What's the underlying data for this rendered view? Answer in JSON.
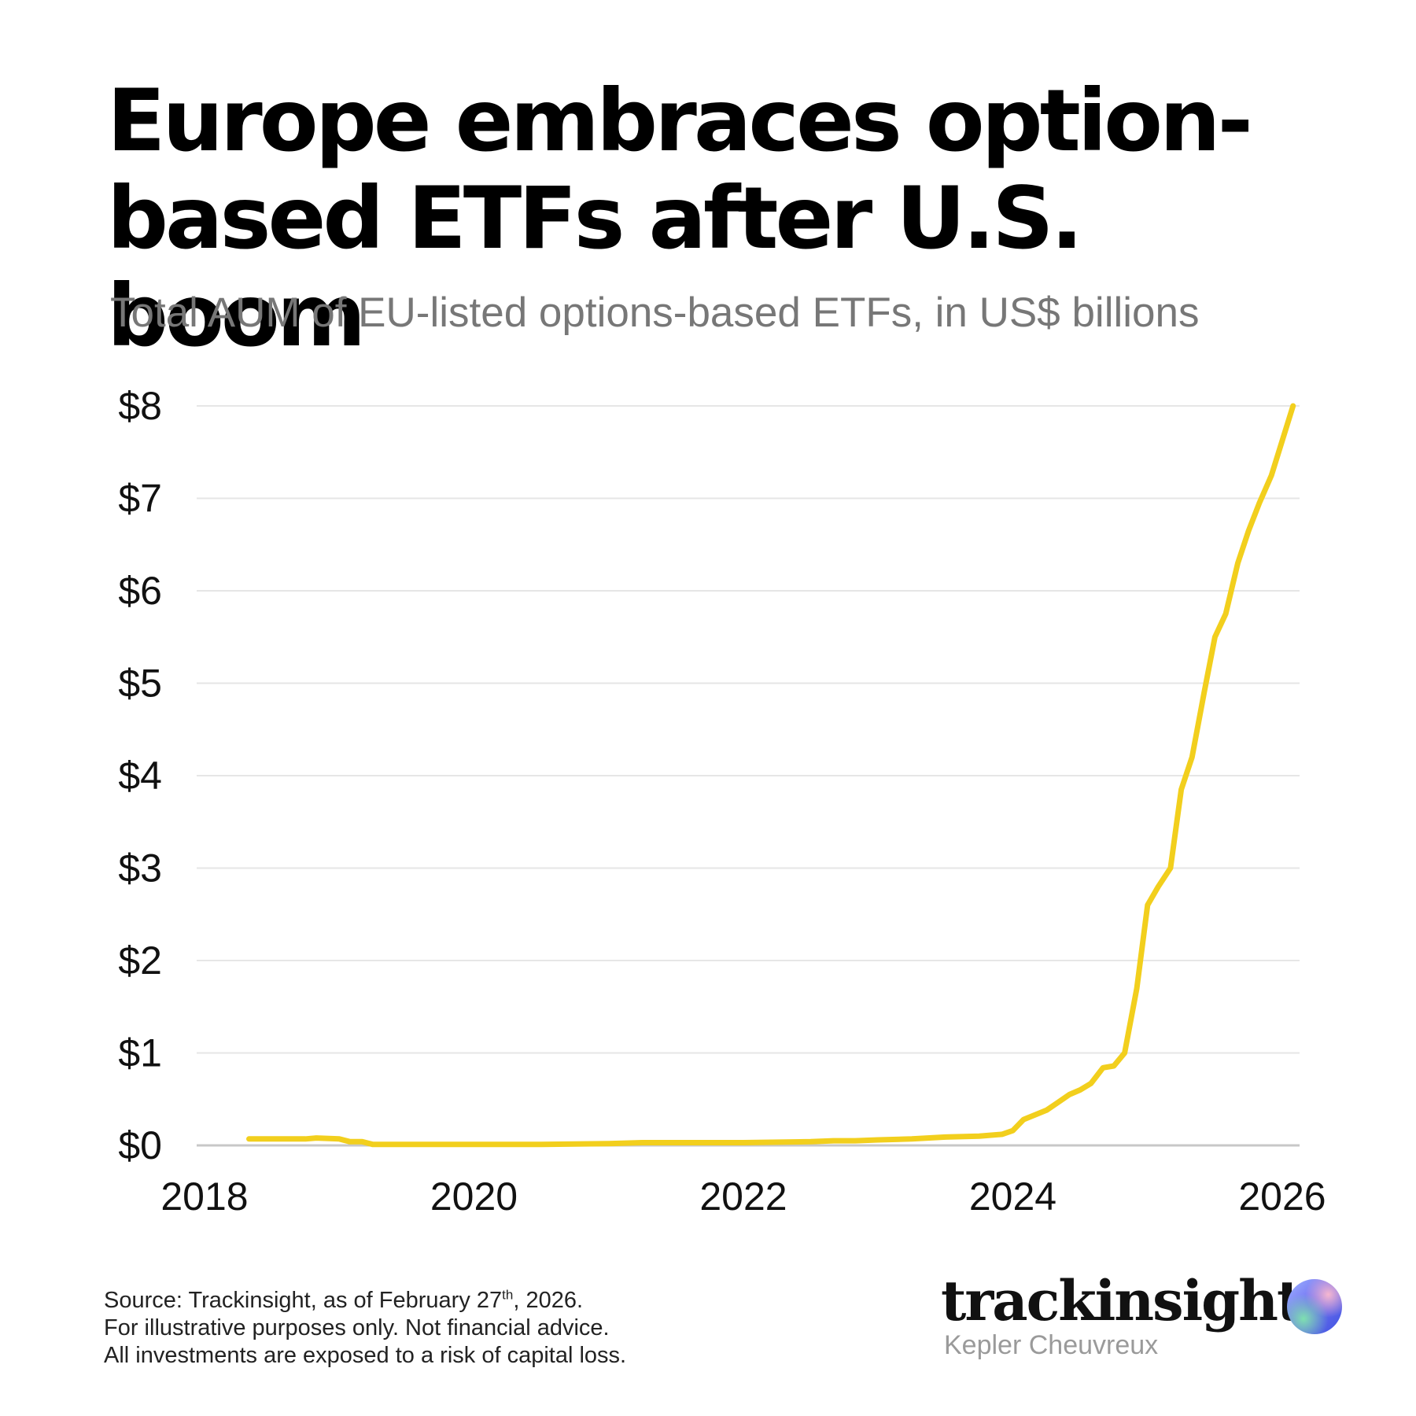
{
  "header": {
    "title": "Europe embraces option-based ETFs after U.S. boom",
    "subtitle": "Total AUM of EU-listed options-based ETFs, in US$ billions"
  },
  "footer": {
    "source_prefix": "Source: Trackinsight, as of February 27",
    "source_sup": "th",
    "source_suffix": ", 2026.",
    "line2": "For illustrative purposes only. Not financial advice.",
    "line3": "All investments are exposed to a risk of capital loss."
  },
  "brand": {
    "name": "trackinsight",
    "subname": "Kepler Cheuvreux",
    "logo_icon": "gradient-orb-icon"
  },
  "colors": {
    "line": "#F2CF1D",
    "grid": "#E6E6E6",
    "axis": "#C8C8C8",
    "subtitle": "#777777"
  },
  "chart_data": {
    "type": "line",
    "title": "Europe embraces option-based ETFs after U.S. boom",
    "subtitle": "Total AUM of EU-listed options-based ETFs, in US$ billions",
    "xlabel": "",
    "ylabel": "",
    "xlim": [
      2018,
      2026
    ],
    "ylim": [
      0,
      8
    ],
    "x_ticks": [
      2018,
      2020,
      2022,
      2024,
      2026
    ],
    "x_tick_labels": [
      "2018",
      "2020",
      "2022",
      "2024",
      "2026"
    ],
    "y_ticks": [
      0,
      1,
      2,
      3,
      4,
      5,
      6,
      7,
      8
    ],
    "y_tick_labels": [
      "$0",
      "$1",
      "$2",
      "$3",
      "$4",
      "$5",
      "$6",
      "$7",
      "$8"
    ],
    "grid": true,
    "legend": "none",
    "series": [
      {
        "x": [
          2018.33,
          2018.5,
          2018.67,
          2018.75,
          2018.83,
          2019.0,
          2019.08,
          2019.17,
          2019.25,
          2019.5,
          2020.0,
          2020.5,
          2021.0,
          2021.25,
          2021.5,
          2022.0,
          2022.5,
          2022.67,
          2022.83,
          2023.0,
          2023.25,
          2023.5,
          2023.75,
          2023.92,
          2024.0,
          2024.08,
          2024.25,
          2024.33,
          2024.42,
          2024.5,
          2024.58,
          2024.67,
          2024.75,
          2024.83,
          2024.92,
          2025.0,
          2025.08,
          2025.17,
          2025.25,
          2025.33,
          2025.42,
          2025.5,
          2025.58,
          2025.67,
          2025.75,
          2025.83,
          2025.92,
          2026.08
        ],
        "y": [
          0.07,
          0.07,
          0.07,
          0.07,
          0.08,
          0.07,
          0.04,
          0.04,
          0.01,
          0.01,
          0.01,
          0.01,
          0.02,
          0.03,
          0.03,
          0.03,
          0.04,
          0.05,
          0.05,
          0.06,
          0.07,
          0.09,
          0.1,
          0.12,
          0.16,
          0.28,
          0.38,
          0.46,
          0.55,
          0.6,
          0.67,
          0.84,
          0.86,
          1.0,
          1.7,
          2.6,
          2.8,
          3.0,
          3.85,
          4.2,
          4.9,
          5.5,
          5.75,
          6.3,
          6.65,
          6.95,
          7.25,
          8.0
        ]
      }
    ]
  }
}
